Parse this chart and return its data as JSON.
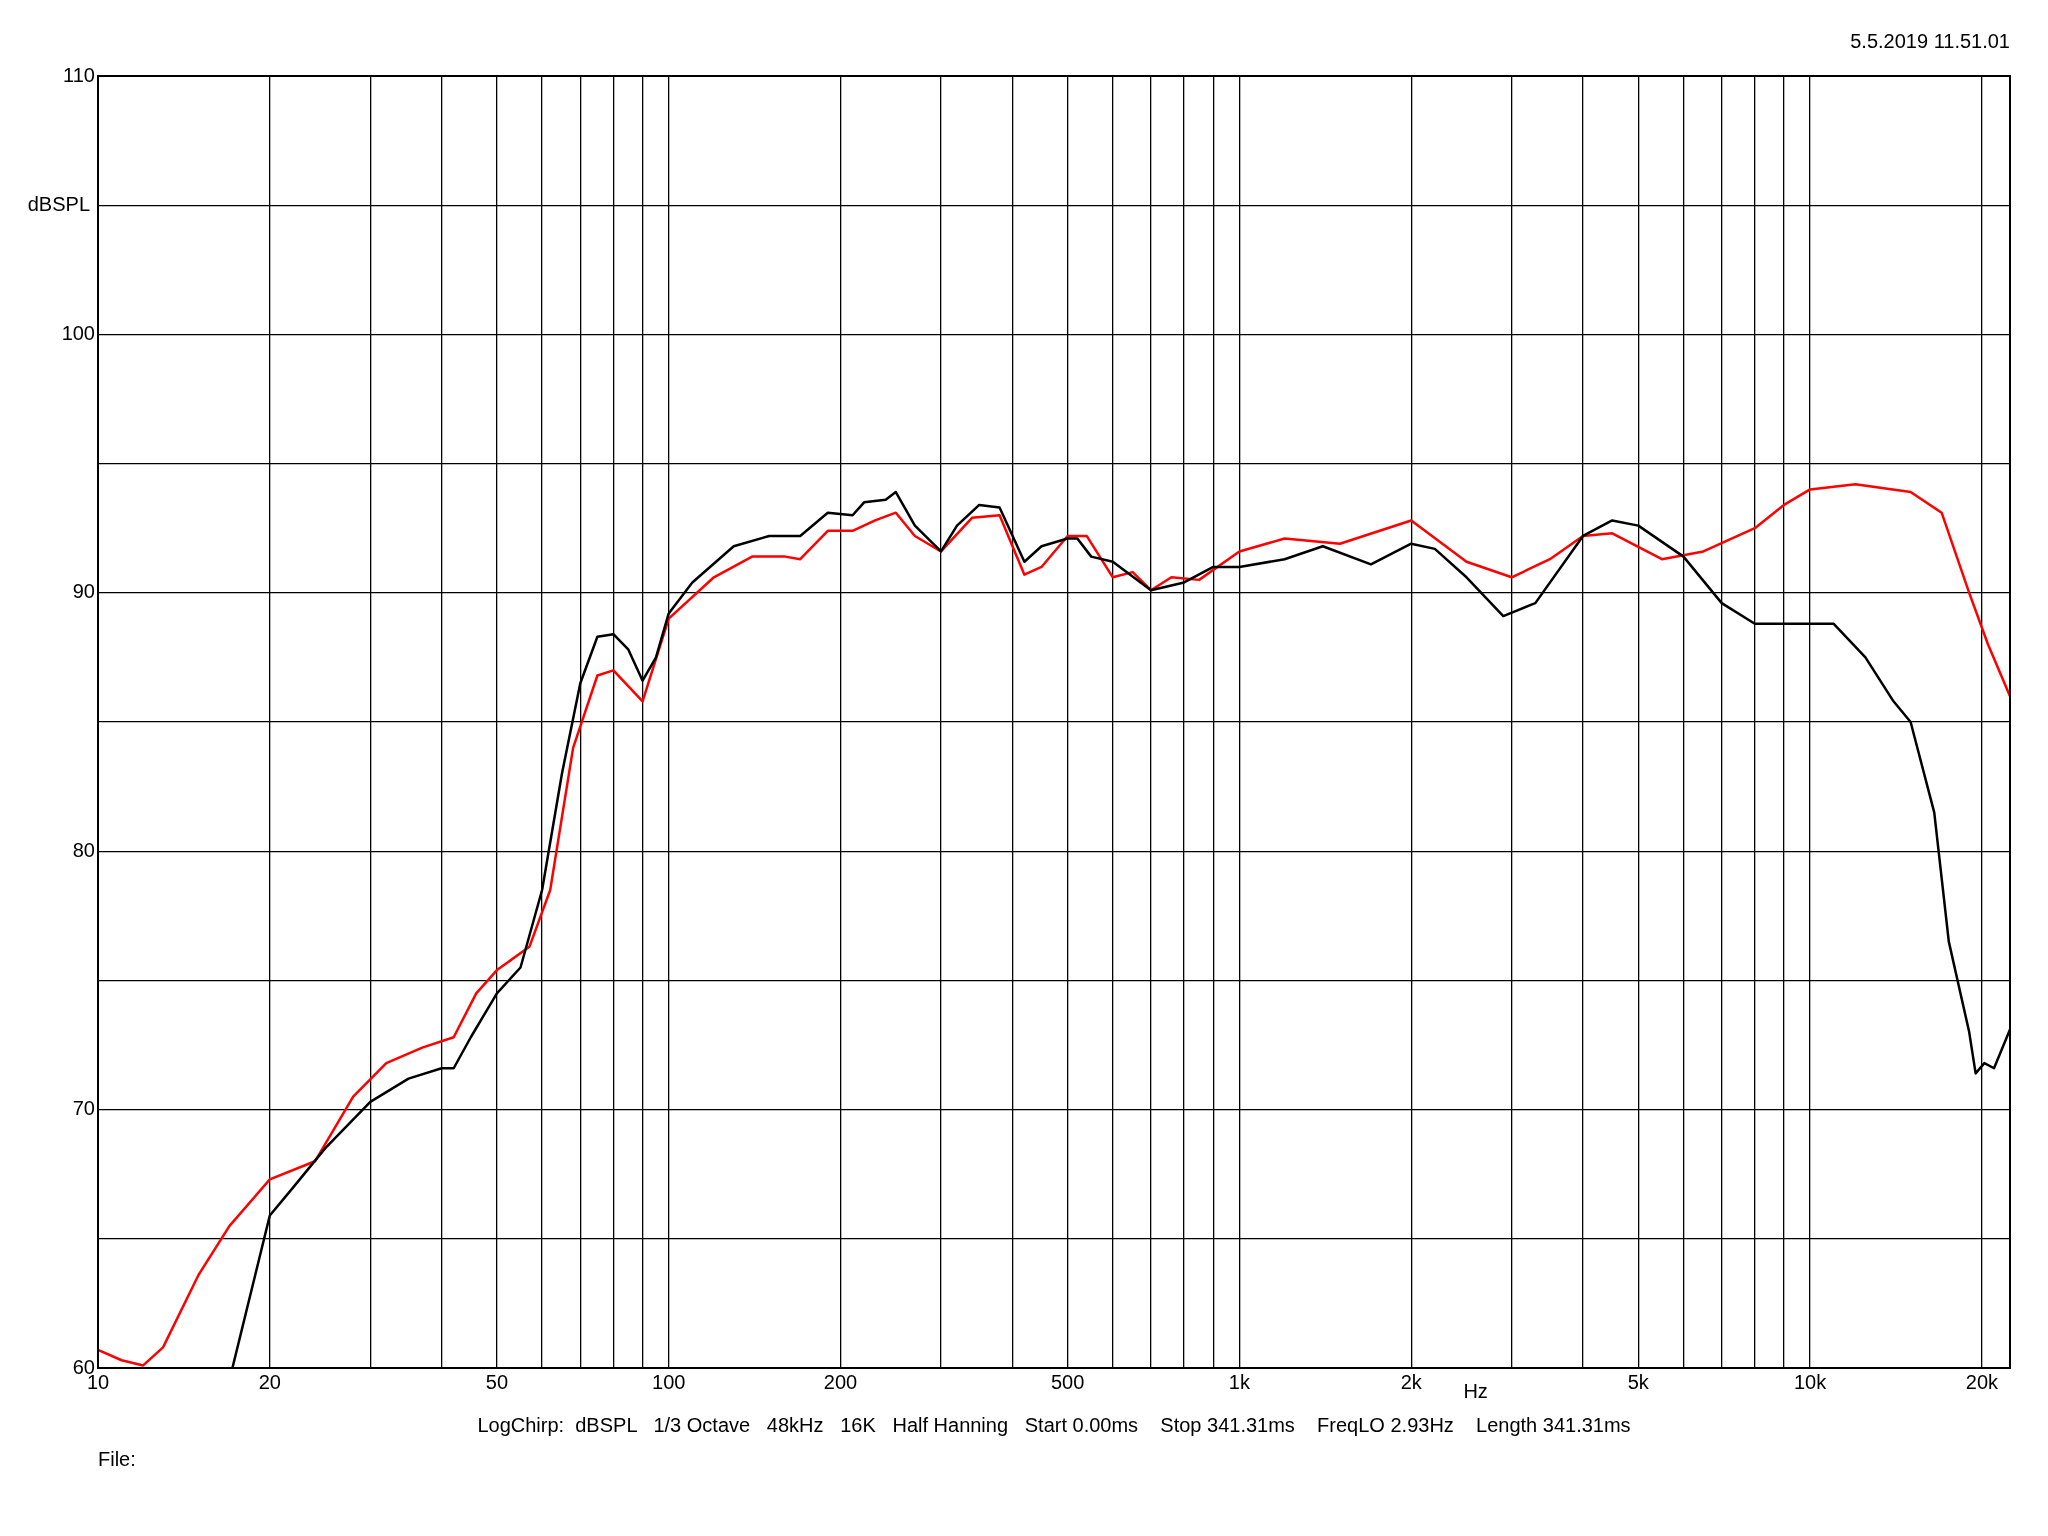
{
  "chart_data": {
    "type": "line",
    "xlabel": "Hz",
    "ylabel": "dBSPL",
    "annotations": [
      "5.5.2019 11.51.01",
      "LogChirp:  dBSPL   1/3 Octave   48kHz   16K   Half Hanning   Start 0.00ms    Stop 341.31ms    FreqLO 2.93Hz    Length 341.31ms",
      "File:"
    ],
    "log": "x",
    "grid": true,
    "legend": false,
    "marker": "none",
    "line_style": "solid",
    "xlim": [
      10,
      22400
    ],
    "xticks": [
      10,
      20,
      {
        "value": 30,
        "label": null
      },
      {
        "value": 40,
        "label": null
      },
      50,
      {
        "value": 60,
        "label": null
      },
      {
        "value": 70,
        "label": null
      },
      {
        "value": 80,
        "label": null
      },
      {
        "value": 90,
        "label": null
      },
      100,
      200,
      {
        "value": 300,
        "label": null
      },
      {
        "value": 400,
        "label": null
      },
      500,
      {
        "value": 600,
        "label": null
      },
      {
        "value": 700,
        "label": null
      },
      {
        "value": 800,
        "label": null
      },
      {
        "value": 900,
        "label": null
      },
      {
        "value": 1000,
        "label": "1k"
      },
      {
        "value": 2000,
        "label": "2k"
      },
      {
        "value": 3000,
        "label": null
      },
      {
        "value": 4000,
        "label": null
      },
      {
        "value": 5000,
        "label": "5k"
      },
      {
        "value": 6000,
        "label": null
      },
      {
        "value": 7000,
        "label": null
      },
      {
        "value": 8000,
        "label": null
      },
      {
        "value": 9000,
        "label": null
      },
      {
        "value": 10000,
        "label": "10k"
      },
      {
        "value": 20000,
        "label": "20k"
      }
    ],
    "ylim": [
      60,
      110
    ],
    "yticks": [
      60,
      {
        "value": 65,
        "label": null
      },
      70,
      {
        "value": 75,
        "label": null
      },
      80,
      {
        "value": 85,
        "label": null
      },
      90,
      {
        "value": 95,
        "label": null
      },
      100,
      {
        "value": 105,
        "label": null
      },
      110
    ],
    "series": [
      {
        "color": "#000000",
        "x": [
          17.2,
          20,
          22,
          25,
          30,
          35,
          40,
          42,
          45,
          50,
          55,
          60,
          65,
          70,
          75,
          80,
          85,
          90,
          95,
          100,
          110,
          130,
          150,
          170,
          190,
          210,
          220,
          240,
          250,
          270,
          300,
          320,
          350,
          380,
          420,
          450,
          500,
          520,
          550,
          600,
          700,
          800,
          900,
          1000,
          1200,
          1400,
          1700,
          2000,
          2200,
          2500,
          2900,
          3300,
          4000,
          4500,
          5000,
          6000,
          7000,
          8000,
          10000,
          11000,
          12500,
          14000,
          15000,
          16500,
          17500,
          19000,
          19500,
          20200,
          21000,
          22400
        ],
        "values": [
          60,
          65.9,
          67,
          68.5,
          70.3,
          71.2,
          71.6,
          71.6,
          72.8,
          74.5,
          75.5,
          78.5,
          83,
          86.5,
          88.3,
          88.4,
          87.8,
          86.6,
          87.5,
          89.2,
          90.4,
          91.8,
          92.2,
          92.2,
          93.1,
          93,
          93.5,
          93.6,
          93.9,
          92.6,
          91.6,
          92.6,
          93.4,
          93.3,
          91.2,
          91.8,
          92.1,
          92.1,
          91.4,
          91.2,
          90.1,
          90.4,
          91,
          91,
          91.3,
          91.8,
          91.1,
          91.9,
          91.7,
          90.6,
          89.1,
          89.6,
          92.2,
          92.8,
          92.6,
          91.4,
          89.6,
          88.8,
          88.8,
          88.8,
          87.5,
          85.8,
          85,
          81.5,
          76.5,
          73,
          71.4,
          71.8,
          71.6,
          73.1
        ]
      },
      {
        "color": "#ff0000",
        "x": [
          10,
          11,
          12,
          13,
          15,
          17,
          20,
          24,
          28,
          32,
          37,
          42,
          46,
          50,
          57,
          62,
          68,
          75,
          80,
          90,
          100,
          120,
          140,
          160,
          170,
          190,
          210,
          230,
          250,
          270,
          300,
          340,
          380,
          420,
          450,
          500,
          540,
          600,
          650,
          700,
          760,
          850,
          1000,
          1200,
          1500,
          2000,
          2500,
          3000,
          3500,
          4000,
          4500,
          5500,
          6500,
          8000,
          9000,
          10000,
          12000,
          15000,
          17000,
          19000,
          20500,
          22400
        ],
        "values": [
          60.7,
          60.3,
          60.1,
          60.8,
          63.6,
          65.5,
          67.3,
          68,
          70.5,
          71.8,
          72.4,
          72.8,
          74.5,
          75.4,
          76.3,
          78.5,
          84,
          86.8,
          87,
          85.8,
          89,
          90.6,
          91.4,
          91.4,
          91.3,
          92.4,
          92.4,
          92.8,
          93.1,
          92.2,
          91.6,
          92.9,
          93,
          90.7,
          91,
          92.2,
          92.2,
          90.6,
          90.8,
          90.1,
          90.6,
          90.5,
          91.6,
          92.1,
          91.9,
          92.8,
          91.2,
          90.6,
          91.3,
          92.2,
          92.3,
          91.3,
          91.6,
          92.5,
          93.4,
          94,
          94.2,
          93.9,
          93.1,
          90,
          88,
          86
        ]
      }
    ]
  }
}
